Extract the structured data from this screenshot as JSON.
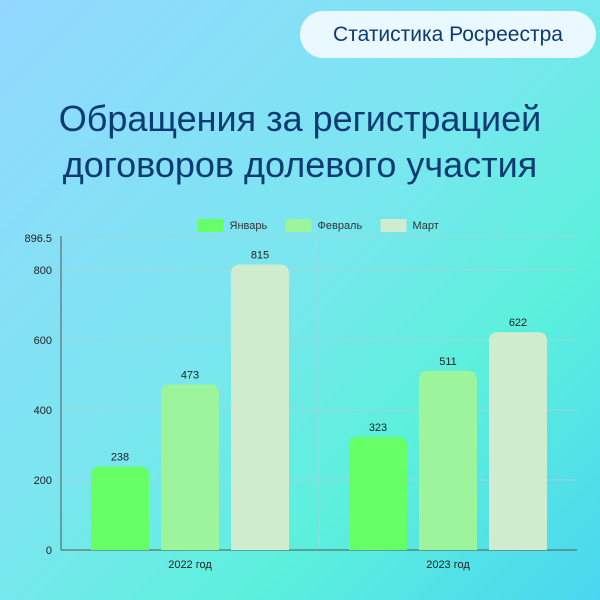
{
  "header": {
    "badge": "Статистика Росреестра",
    "title_line1": "Обращения за регистрацией",
    "title_line2": "договоров долевого участия"
  },
  "chart_data": {
    "type": "bar",
    "categories": [
      "2022 год",
      "2023 год"
    ],
    "series": [
      {
        "name": "Январь",
        "values": [
          238,
          323
        ],
        "color": "#66ff66"
      },
      {
        "name": "Февраль",
        "values": [
          473,
          511
        ],
        "color": "#9cf59c"
      },
      {
        "name": "Март",
        "values": [
          815,
          622
        ],
        "color": "#cfeccf"
      }
    ],
    "ylim": [
      0,
      896.5
    ],
    "yticks": [
      0,
      200,
      400,
      600,
      800
    ],
    "ymax_label": "896.5",
    "grid": true,
    "legend": "top-center",
    "title": "",
    "xlabel": "",
    "ylabel": ""
  }
}
